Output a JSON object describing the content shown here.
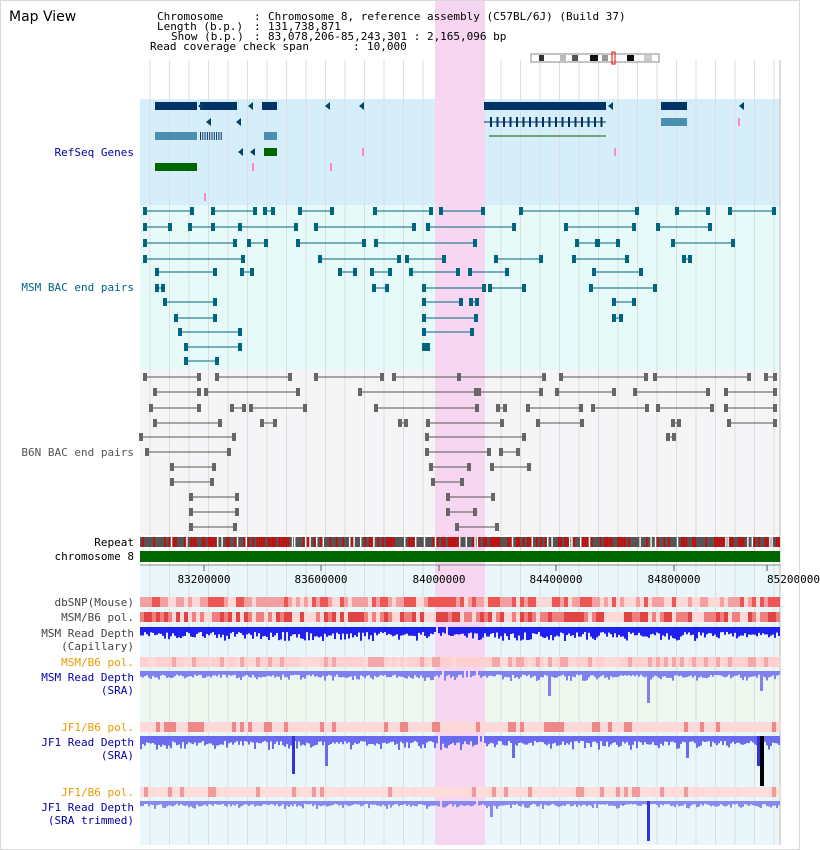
{
  "header": {
    "title": "Map View",
    "chromosome_key": "Chromosome",
    "chromosome_value": "Chromosome 8, reference assembly (C57BL/6J) (Build 37)",
    "length_key": "Length (b.p.)",
    "length_value": "131,738,871",
    "show_key": "Show (b.p.)",
    "show_value": "83,078,206-85,243,301 : 2,165,096 bp",
    "coverage_key": "Read coverage check span",
    "coverage_value": "10,000"
  },
  "tracks": {
    "refseq": "RefSeq Genes",
    "msm_bac": "MSM BAC end pairs",
    "b6n_bac": "B6N BAC end pairs",
    "repeat": "Repeat",
    "chromosome": "chromosome 8",
    "dbsnp": "dbSNP(Mouse)",
    "msm_b6_pol_1": "MSM/B6 pol.",
    "msm_depth_cap_1": "MSM Read Depth",
    "msm_depth_cap_2": "(Capillary)",
    "msm_b6_pol_2": "MSM/B6 pol.",
    "msm_depth_sra_1": "MSM Read Depth",
    "msm_depth_sra_2": "(SRA)",
    "jf1_b6_pol_1": "JF1/B6 pol.",
    "jf1_depth_sra_1": "JF1 Read Depth",
    "jf1_depth_sra_2": "(SRA)",
    "jf1_b6_pol_2": "JF1/B6 pol.",
    "jf1_depth_trim_1": "JF1 Read Depth",
    "jf1_depth_trim_2": "(SRA trimmed)"
  },
  "axis": {
    "ticks": [
      "83200000",
      "83600000",
      "84000000",
      "84400000",
      "84800000",
      "85200000"
    ]
  },
  "colors": {
    "refseq_label": "#0000aa",
    "msm_label": "#006680",
    "b6n_label": "#555555",
    "pol_orange": "#ee9900",
    "depth_blue": "#0000aa",
    "highlight": "#f7d6f2",
    "chromosome_green": "#006600"
  }
}
